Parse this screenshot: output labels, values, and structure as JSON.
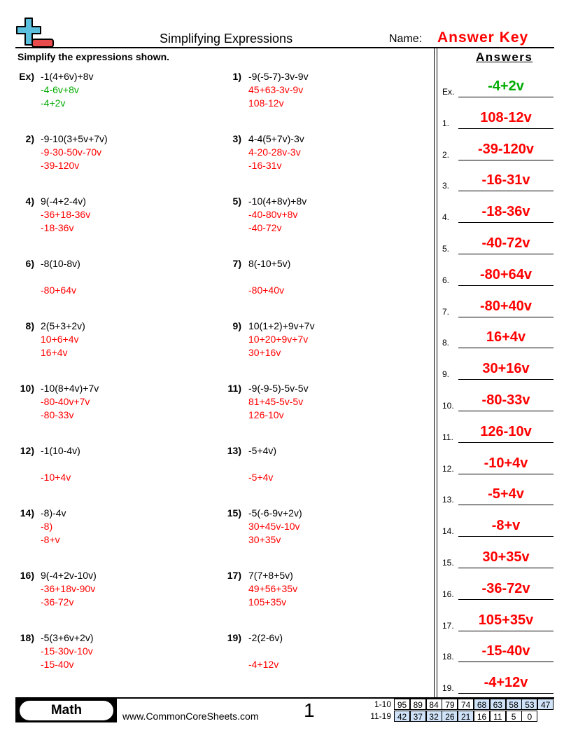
{
  "header": {
    "title": "Simplifying Expressions",
    "name_label": "Name:",
    "name_value": "Answer Key",
    "instructions": "Simplify the expressions shown.",
    "answers_title": "Answers"
  },
  "colors": {
    "answer": "#ff0000",
    "example": "#00aa00",
    "logo_plus": "#5bc0de",
    "logo_minus": "#e84c4c",
    "score_highlight": "#cfe2f8"
  },
  "problems": [
    {
      "num": "Ex)",
      "expr": "-1(4+6v)+8v",
      "steps": [
        "-4-6v+8v",
        "-4+2v"
      ]
    },
    {
      "num": "1)",
      "expr": "-9(-5-7)-3v-9v",
      "steps": [
        "45+63-3v-9v",
        "108-12v"
      ]
    },
    {
      "num": "2)",
      "expr": "-9-10(3+5v+7v)",
      "steps": [
        "-9-30-50v-70v",
        "-39-120v"
      ]
    },
    {
      "num": "3)",
      "expr": "4-4(5+7v)-3v",
      "steps": [
        "4-20-28v-3v",
        "-16-31v"
      ]
    },
    {
      "num": "4)",
      "expr": "9(-4+2-4v)",
      "steps": [
        "-36+18-36v",
        "-18-36v"
      ]
    },
    {
      "num": "5)",
      "expr": "-10(4+8v)+8v",
      "steps": [
        "-40-80v+8v",
        "-40-72v"
      ]
    },
    {
      "num": "6)",
      "expr": "-8(10-8v)",
      "steps": [
        "",
        "-80+64v"
      ]
    },
    {
      "num": "7)",
      "expr": "8(-10+5v)",
      "steps": [
        "",
        "-80+40v"
      ]
    },
    {
      "num": "8)",
      "expr": "2(5+3+2v)",
      "steps": [
        "10+6+4v",
        "16+4v"
      ]
    },
    {
      "num": "9)",
      "expr": "10(1+2)+9v+7v",
      "steps": [
        "10+20+9v+7v",
        "30+16v"
      ]
    },
    {
      "num": "10)",
      "expr": "-10(8+4v)+7v",
      "steps": [
        "-80-40v+7v",
        "-80-33v"
      ]
    },
    {
      "num": "11)",
      "expr": "-9(-9-5)-5v-5v",
      "steps": [
        "81+45-5v-5v",
        "126-10v"
      ]
    },
    {
      "num": "12)",
      "expr": "-1(10-4v)",
      "steps": [
        "",
        "-10+4v"
      ]
    },
    {
      "num": "13)",
      "expr": "-5+4v)",
      "steps": [
        "",
        "-5+4v"
      ]
    },
    {
      "num": "14)",
      "expr": "-8)-4v",
      "steps": [
        "-8)",
        "-8+v"
      ]
    },
    {
      "num": "15)",
      "expr": "-5(-6-9v+2v)",
      "steps": [
        "30+45v-10v",
        "30+35v"
      ]
    },
    {
      "num": "16)",
      "expr": "9(-4+2v-10v)",
      "steps": [
        "-36+18v-90v",
        "-36-72v"
      ]
    },
    {
      "num": "17)",
      "expr": "7(7+8+5v)",
      "steps": [
        "49+56+35v",
        "105+35v"
      ]
    },
    {
      "num": "18)",
      "expr": "-5(3+6v+2v)",
      "steps": [
        "-15-30v-10v",
        "-15-40v"
      ]
    },
    {
      "num": "19)",
      "expr": "-2(2-6v)",
      "steps": [
        "",
        "-4+12v"
      ]
    }
  ],
  "answers": [
    {
      "label": "Ex.",
      "value": "-4+2v"
    },
    {
      "label": "1.",
      "value": "108-12v"
    },
    {
      "label": "2.",
      "value": "-39-120v"
    },
    {
      "label": "3.",
      "value": "-16-31v"
    },
    {
      "label": "4.",
      "value": "-18-36v"
    },
    {
      "label": "5.",
      "value": "-40-72v"
    },
    {
      "label": "6.",
      "value": "-80+64v"
    },
    {
      "label": "7.",
      "value": "-80+40v"
    },
    {
      "label": "8.",
      "value": "16+4v"
    },
    {
      "label": "9.",
      "value": "30+16v"
    },
    {
      "label": "10.",
      "value": "-80-33v"
    },
    {
      "label": "11.",
      "value": "126-10v"
    },
    {
      "label": "12.",
      "value": "-10+4v"
    },
    {
      "label": "13.",
      "value": "-5+4v"
    },
    {
      "label": "14.",
      "value": "-8+v"
    },
    {
      "label": "15.",
      "value": "30+35v"
    },
    {
      "label": "16.",
      "value": "-36-72v"
    },
    {
      "label": "17.",
      "value": "105+35v"
    },
    {
      "label": "18.",
      "value": "-15-40v"
    },
    {
      "label": "19.",
      "value": "-4+12v"
    }
  ],
  "footer": {
    "subject": "Math",
    "website": "www.CommonCoreSheets.com",
    "page": "1",
    "score_rows": [
      {
        "label": "1-10",
        "scores": [
          "95",
          "89",
          "84",
          "79",
          "74",
          "68",
          "63",
          "58",
          "53",
          "47"
        ],
        "highlighted": [
          false,
          false,
          false,
          false,
          false,
          true,
          true,
          true,
          true,
          true
        ]
      },
      {
        "label": "11-19",
        "scores": [
          "42",
          "37",
          "32",
          "26",
          "21",
          "16",
          "11",
          "5",
          "0"
        ],
        "highlighted": [
          true,
          true,
          true,
          true,
          true,
          false,
          false,
          false,
          false
        ]
      }
    ]
  }
}
